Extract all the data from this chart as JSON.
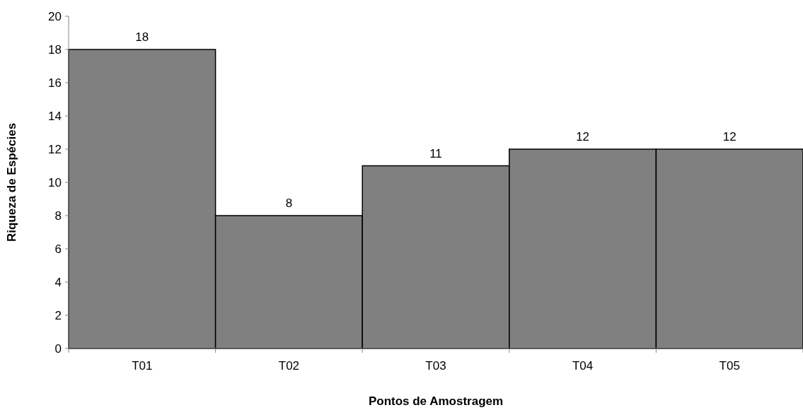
{
  "chart_data": {
    "type": "bar",
    "xlabel": "Pontos de Amostragem",
    "ylabel": "Riqueza de Espécies",
    "categories": [
      "T01",
      "T02",
      "T03",
      "T04",
      "T05"
    ],
    "values": [
      18,
      8,
      11,
      12,
      12
    ],
    "color": "#808080",
    "ylim": [
      0,
      20
    ],
    "yticks": [
      0,
      2,
      4,
      6,
      8,
      10,
      12,
      14,
      16,
      18,
      20
    ],
    "grid": false,
    "data_labels": true
  }
}
